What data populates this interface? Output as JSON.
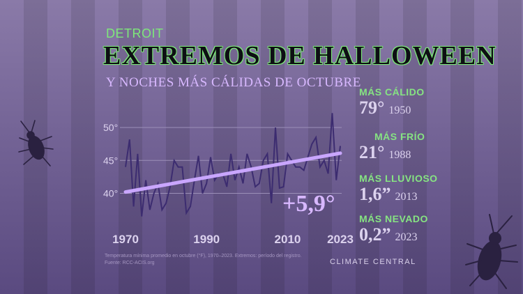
{
  "header": {
    "kicker": "DETROIT",
    "title": "EXTREMOS DE HALLOWEEN",
    "subtitle": "Y NOCHES MÁS CÁLIDAS DE OCTUBRE"
  },
  "stats": [
    {
      "label": "MÁS CÁLIDO",
      "value": "79°",
      "year": "1950"
    },
    {
      "label": "MÁS FRÍO",
      "value": "21°",
      "year": "1988"
    },
    {
      "label": "MÁS LLUVIOSO",
      "value": "1,6”",
      "year": "2013"
    },
    {
      "label": "MÁS NEVADO",
      "value": "0,2”",
      "year": "2023"
    }
  ],
  "annotation": "+5,9°",
  "source_lines": [
    "Temperatura mínima promedio en octubre (°F), 1970–2023. Extremos: período del registro.",
    "Fuente: RCC-ACIS.org"
  ],
  "brand": "CLIMATE CENTRAL",
  "colors": {
    "line": "#3c2c70",
    "trend": "#c9a6ff",
    "accent_green": "#7ee87a",
    "accent_purple": "#d8b8ff"
  },
  "icons": [
    "cockroach-icon",
    "cockroach-icon",
    "climate-central-logo-icon"
  ],
  "chart_data": {
    "type": "line",
    "x_ticks": [
      "1970",
      "1990",
      "2010",
      "2023"
    ],
    "y_ticks": [
      "50°",
      "45°",
      "40°"
    ],
    "ylim": [
      35.5,
      53.5
    ],
    "xlim": [
      1970,
      2023
    ],
    "series": [
      {
        "x": [
          1970,
          1971,
          1972,
          1973,
          1974,
          1975,
          1976,
          1977,
          1978,
          1979,
          1980,
          1981,
          1982,
          1983,
          1984,
          1985,
          1986,
          1987,
          1988,
          1989,
          1990,
          1991,
          1992,
          1993,
          1994,
          1995,
          1996,
          1997,
          1998,
          1999,
          2000,
          2001,
          2002,
          2003,
          2004,
          2005,
          2006,
          2007,
          2008,
          2009,
          2010,
          2011,
          2012,
          2013,
          2014,
          2015,
          2016,
          2017,
          2018,
          2019,
          2020,
          2021,
          2022,
          2023
        ],
        "values": [
          44,
          48.2,
          38,
          46,
          36.5,
          42,
          37.5,
          40,
          41.5,
          37.5,
          38.5,
          41,
          45,
          44,
          44,
          37,
          38,
          42,
          45.7,
          40,
          41.5,
          45.5,
          42,
          43,
          43,
          41,
          46,
          42,
          44,
          41.5,
          46,
          44,
          41,
          41.5,
          45,
          46,
          38.5,
          50,
          40.8,
          41,
          46,
          45,
          44,
          44,
          43.5,
          45.5,
          47.5,
          48.5,
          44,
          45,
          43,
          52.2,
          42,
          47.2
        ]
      },
      {
        "name": "",
        "trend_start": 40.2,
        "trend_end": 46.1
      }
    ]
  }
}
